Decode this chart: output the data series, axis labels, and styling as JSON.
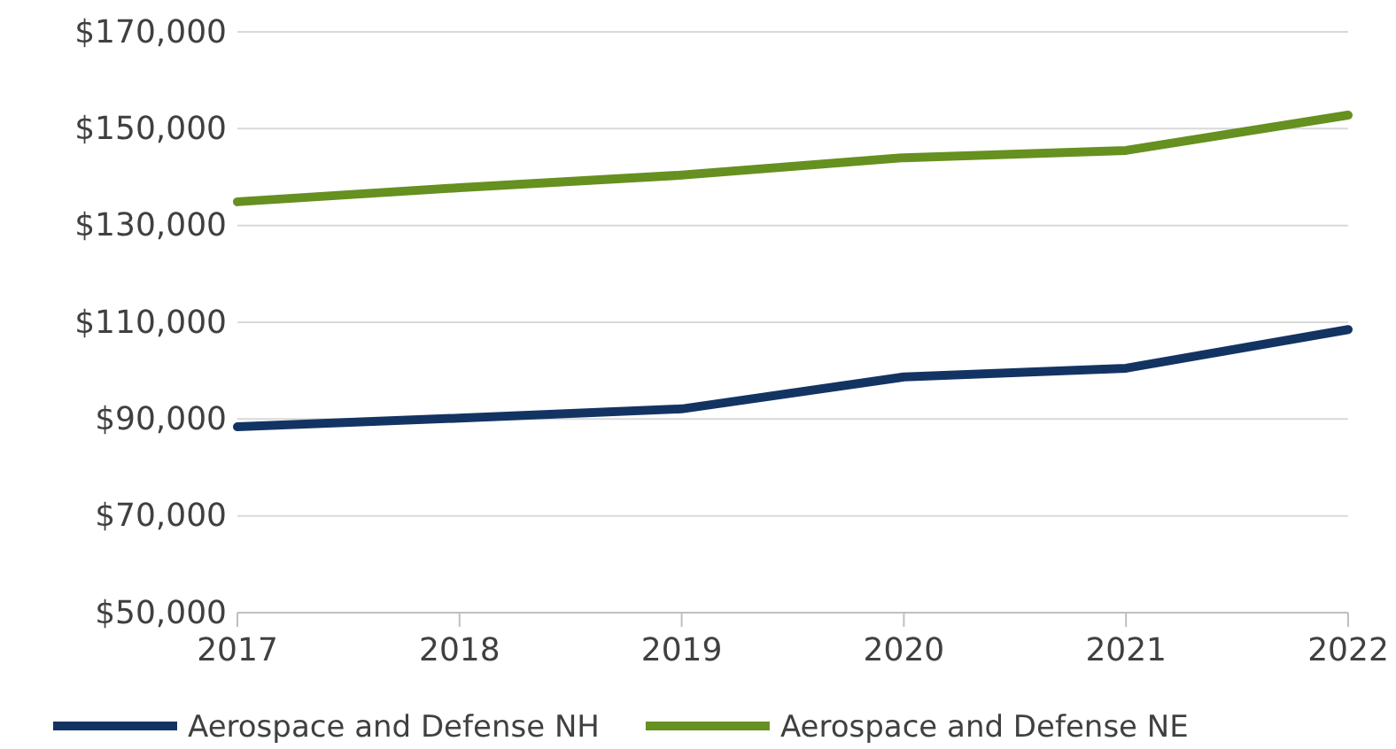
{
  "chart_data": {
    "type": "line",
    "x": [
      2017,
      2018,
      2019,
      2020,
      2021,
      2022
    ],
    "xlim": [
      2017,
      2022
    ],
    "xticks": [
      2017,
      2018,
      2019,
      2020,
      2021,
      2022
    ],
    "ylim": [
      50000,
      170000
    ],
    "yticks": [
      {
        "value": 50000,
        "label": "$50,000"
      },
      {
        "value": 70000,
        "label": "$70,000"
      },
      {
        "value": 90000,
        "label": "$90,000"
      },
      {
        "value": 110000,
        "label": "$110,000"
      },
      {
        "value": 130000,
        "label": "$130,000"
      },
      {
        "value": 150000,
        "label": "$150,000"
      },
      {
        "value": 170000,
        "label": "$170,000"
      }
    ],
    "grid": "y",
    "legend": "bottom",
    "marker": "none",
    "line_style": "solid",
    "series": [
      {
        "name": "Aerospace and Defense NH",
        "color": "#133463",
        "values": [
          88400,
          90200,
          92100,
          98700,
          100500,
          108500
        ]
      },
      {
        "name": "Aerospace and Defense NE",
        "color": "#66901f",
        "values": [
          134900,
          137800,
          140400,
          144000,
          145500,
          152800
        ]
      }
    ]
  }
}
